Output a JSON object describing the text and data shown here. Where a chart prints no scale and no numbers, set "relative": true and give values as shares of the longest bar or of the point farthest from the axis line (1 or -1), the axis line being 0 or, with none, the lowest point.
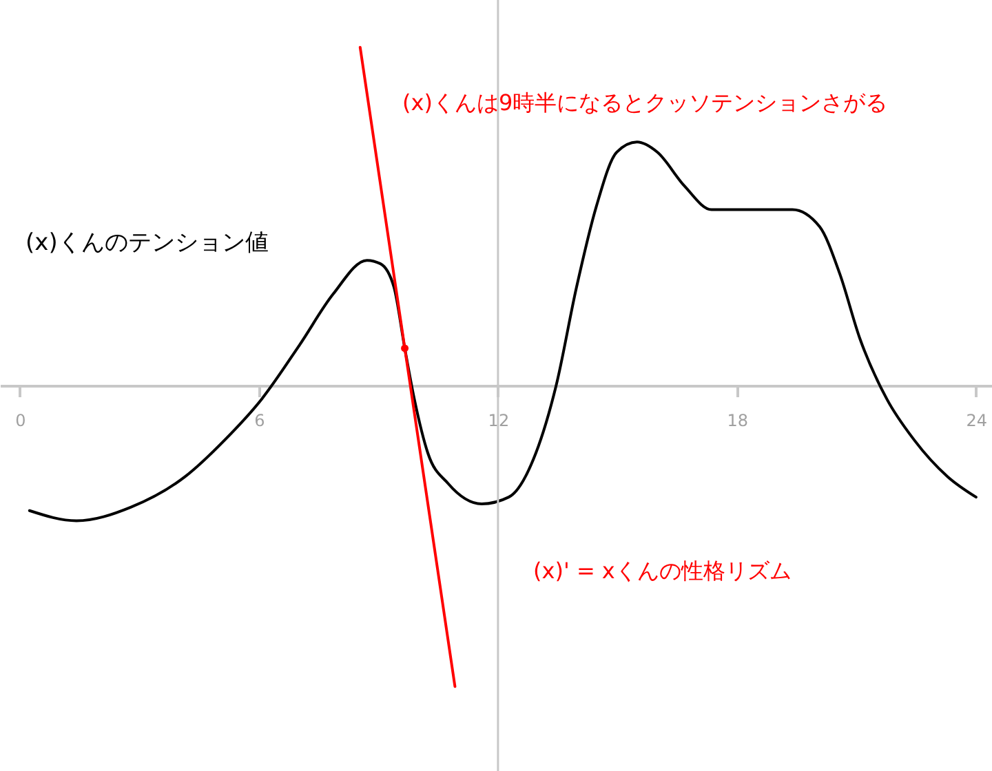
{
  "chart_data": {
    "type": "line",
    "relative": true,
    "ylabel": "(x)くんのテンション値",
    "xlim": [
      -0.5,
      24.4
    ],
    "xticks": [
      0,
      6,
      12,
      18,
      24
    ],
    "grid": false,
    "marker": "none",
    "line_style": "solid",
    "series": [
      {
        "color": "#000000",
        "x": [
          0.24,
          1.42,
          2.78,
          4.14,
          5.15,
          6.07,
          7.02,
          7.86,
          8.71,
          9.05,
          9.39,
          9.66,
          9.9,
          10.24,
          10.75,
          11.59,
          12.27,
          12.95,
          13.46,
          13.97,
          14.47,
          14.98,
          15.49,
          16.0,
          16.68,
          17.36,
          18.37,
          19.39,
          20.07,
          20.58,
          21.08,
          21.76,
          22.44,
          23.29,
          24.0
        ],
        "values": [
          -0.37,
          -0.4,
          -0.36,
          -0.27,
          -0.16,
          -0.04,
          0.12,
          0.27,
          0.37,
          0.36,
          0.29,
          0.11,
          -0.04,
          -0.2,
          -0.29,
          -0.35,
          -0.33,
          -0.2,
          0,
          0.29,
          0.53,
          0.69,
          0.72,
          0.69,
          0.59,
          0.52,
          0.52,
          0.52,
          0.47,
          0.33,
          0.14,
          -0.04,
          -0.16,
          -0.27,
          -0.33
        ]
      },
      {
        "color": "#ff0000",
        "x": [
          8.54,
          10.92
        ],
        "values": [
          1,
          -0.89
        ]
      },
      {
        "type": "scatter",
        "marker": "circle",
        "color": "#ff0000",
        "x": [
          9.66
        ],
        "values": [
          0.11
        ]
      }
    ],
    "ref_lines": [
      {
        "axis": "x",
        "value": 12,
        "color": "#c8c8c8"
      }
    ],
    "annotations": [
      "(x)くんは9時半になるとクッソテンションさがる",
      "(x)' = xくんの性格リズム"
    ]
  }
}
